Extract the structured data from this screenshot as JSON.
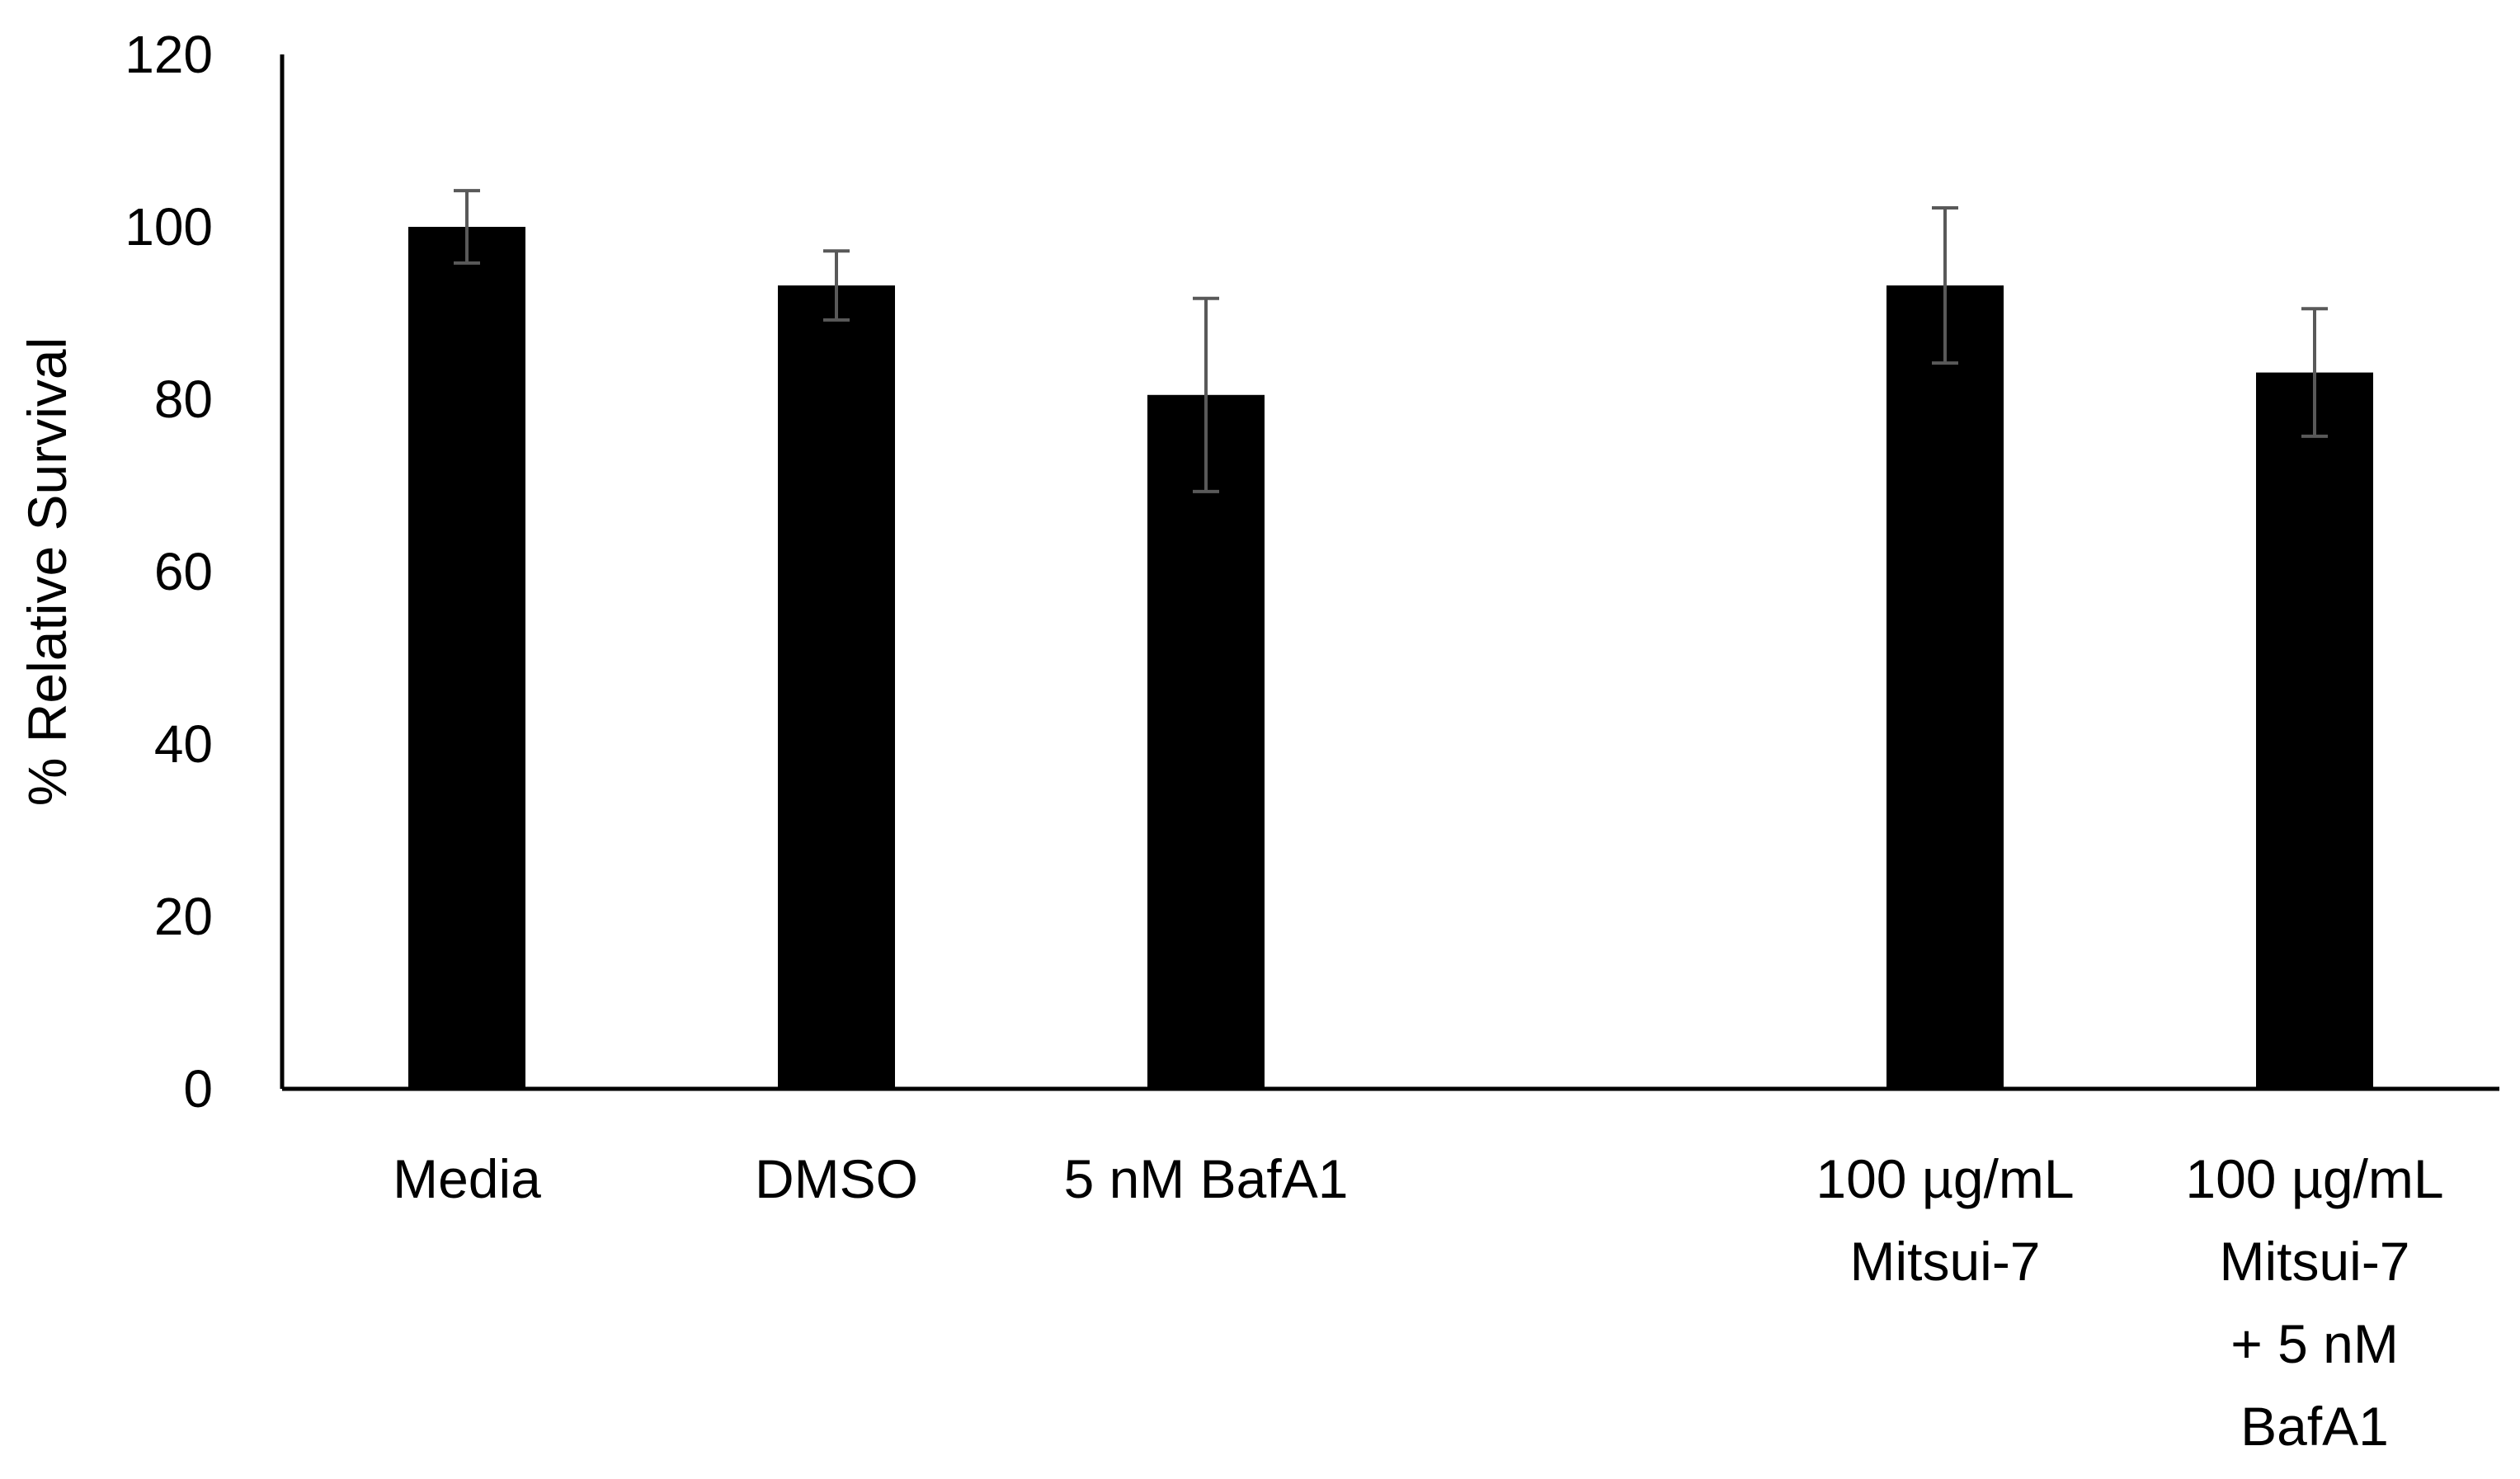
{
  "chart_data": {
    "type": "bar",
    "title": "",
    "xlabel": "",
    "ylabel": "% Relative Survival",
    "ylim": [
      0,
      120
    ],
    "yticks": [
      0,
      20,
      40,
      60,
      80,
      100,
      120
    ],
    "grid": false,
    "legend": "none",
    "bar_color": "#000000",
    "error_bar_color": "#595959",
    "categories": [
      {
        "slot": 0,
        "lines": [
          "Media"
        ]
      },
      {
        "slot": 1,
        "lines": [
          "DMSO"
        ]
      },
      {
        "slot": 2,
        "lines": [
          "5 nM BafA1"
        ]
      },
      {
        "slot": 4,
        "lines": [
          "100 µg/mL",
          "Mitsui-7"
        ]
      },
      {
        "slot": 5,
        "lines": [
          "100 µg/mL",
          "Mitsui-7",
          "+ 5 nM",
          "BafA1"
        ]
      }
    ],
    "slot_count": 6,
    "values": [
      100,
      93.2,
      80.5,
      93.2,
      83.1
    ],
    "error": [
      4.2,
      4.0,
      11.2,
      9.0,
      7.4
    ]
  }
}
